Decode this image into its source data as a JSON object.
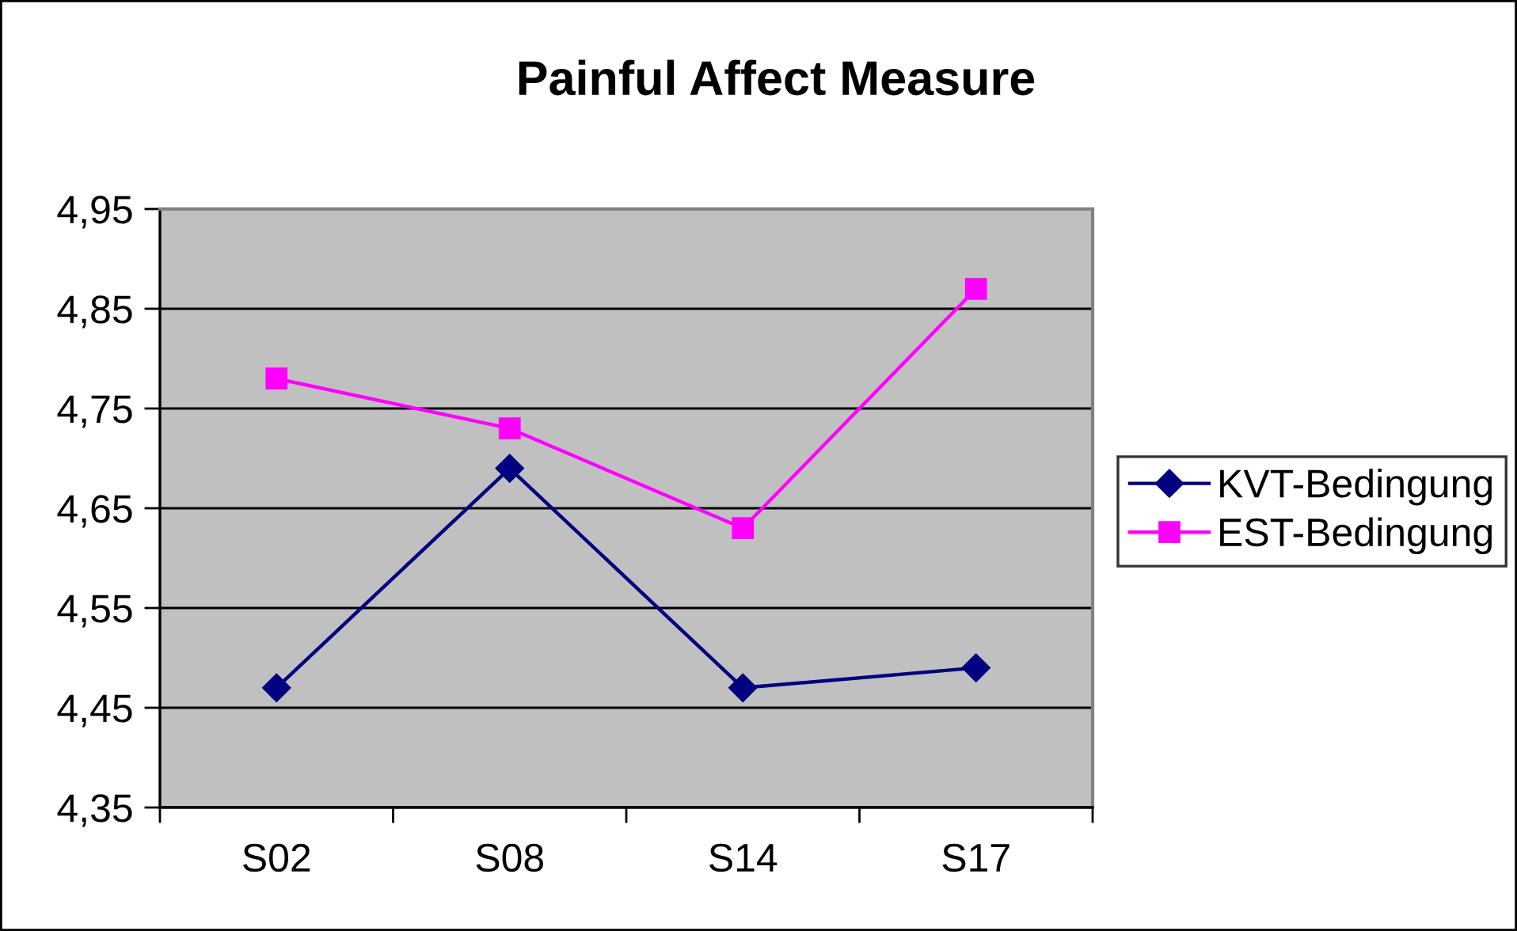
{
  "chart_data": {
    "type": "line",
    "title": "Painful Affect Measure",
    "categories": [
      "S02",
      "S08",
      "S14",
      "S17"
    ],
    "series": [
      {
        "name": "KVT-Bedingung",
        "color": "#000080",
        "marker": "diamond",
        "values": [
          4.47,
          4.69,
          4.47,
          4.49
        ]
      },
      {
        "name": "EST-Bedingung",
        "color": "#ff00ff",
        "marker": "square",
        "values": [
          4.78,
          4.73,
          4.63,
          4.87
        ]
      }
    ],
    "ylim": [
      4.35,
      4.95
    ],
    "yticks": [
      {
        "value": 4.35,
        "label": "4,35"
      },
      {
        "value": 4.45,
        "label": "4,45"
      },
      {
        "value": 4.55,
        "label": "4,55"
      },
      {
        "value": 4.65,
        "label": "4,65"
      },
      {
        "value": 4.75,
        "label": "4,75"
      },
      {
        "value": 4.85,
        "label": "4,85"
      },
      {
        "value": 4.95,
        "label": "4,95"
      }
    ],
    "grid": "y",
    "legend": "right",
    "line_style": "solid"
  }
}
